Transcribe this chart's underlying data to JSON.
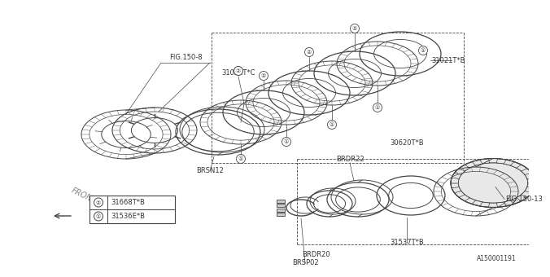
{
  "background_color": "#ffffff",
  "part_labels": {
    "FIG150_8": "FIG.150-8",
    "BRSN12": "BRSN12",
    "31021T_C": "31021T*C",
    "31021T_B": "31021T*B",
    "30620T_B": "30620T*B",
    "BRDR22": "BRDR22",
    "31537T_B": "31537T*B",
    "FIG150_13": "FIG.150-13",
    "BRDR20": "BRDR20",
    "BRSP02": "BRSP02"
  },
  "legend": {
    "1": "31536E*B",
    "2": "31668T*B"
  },
  "diagram_label": "A150001191",
  "front_label": "FRONT",
  "line_color": "#444444",
  "text_color": "#333333"
}
